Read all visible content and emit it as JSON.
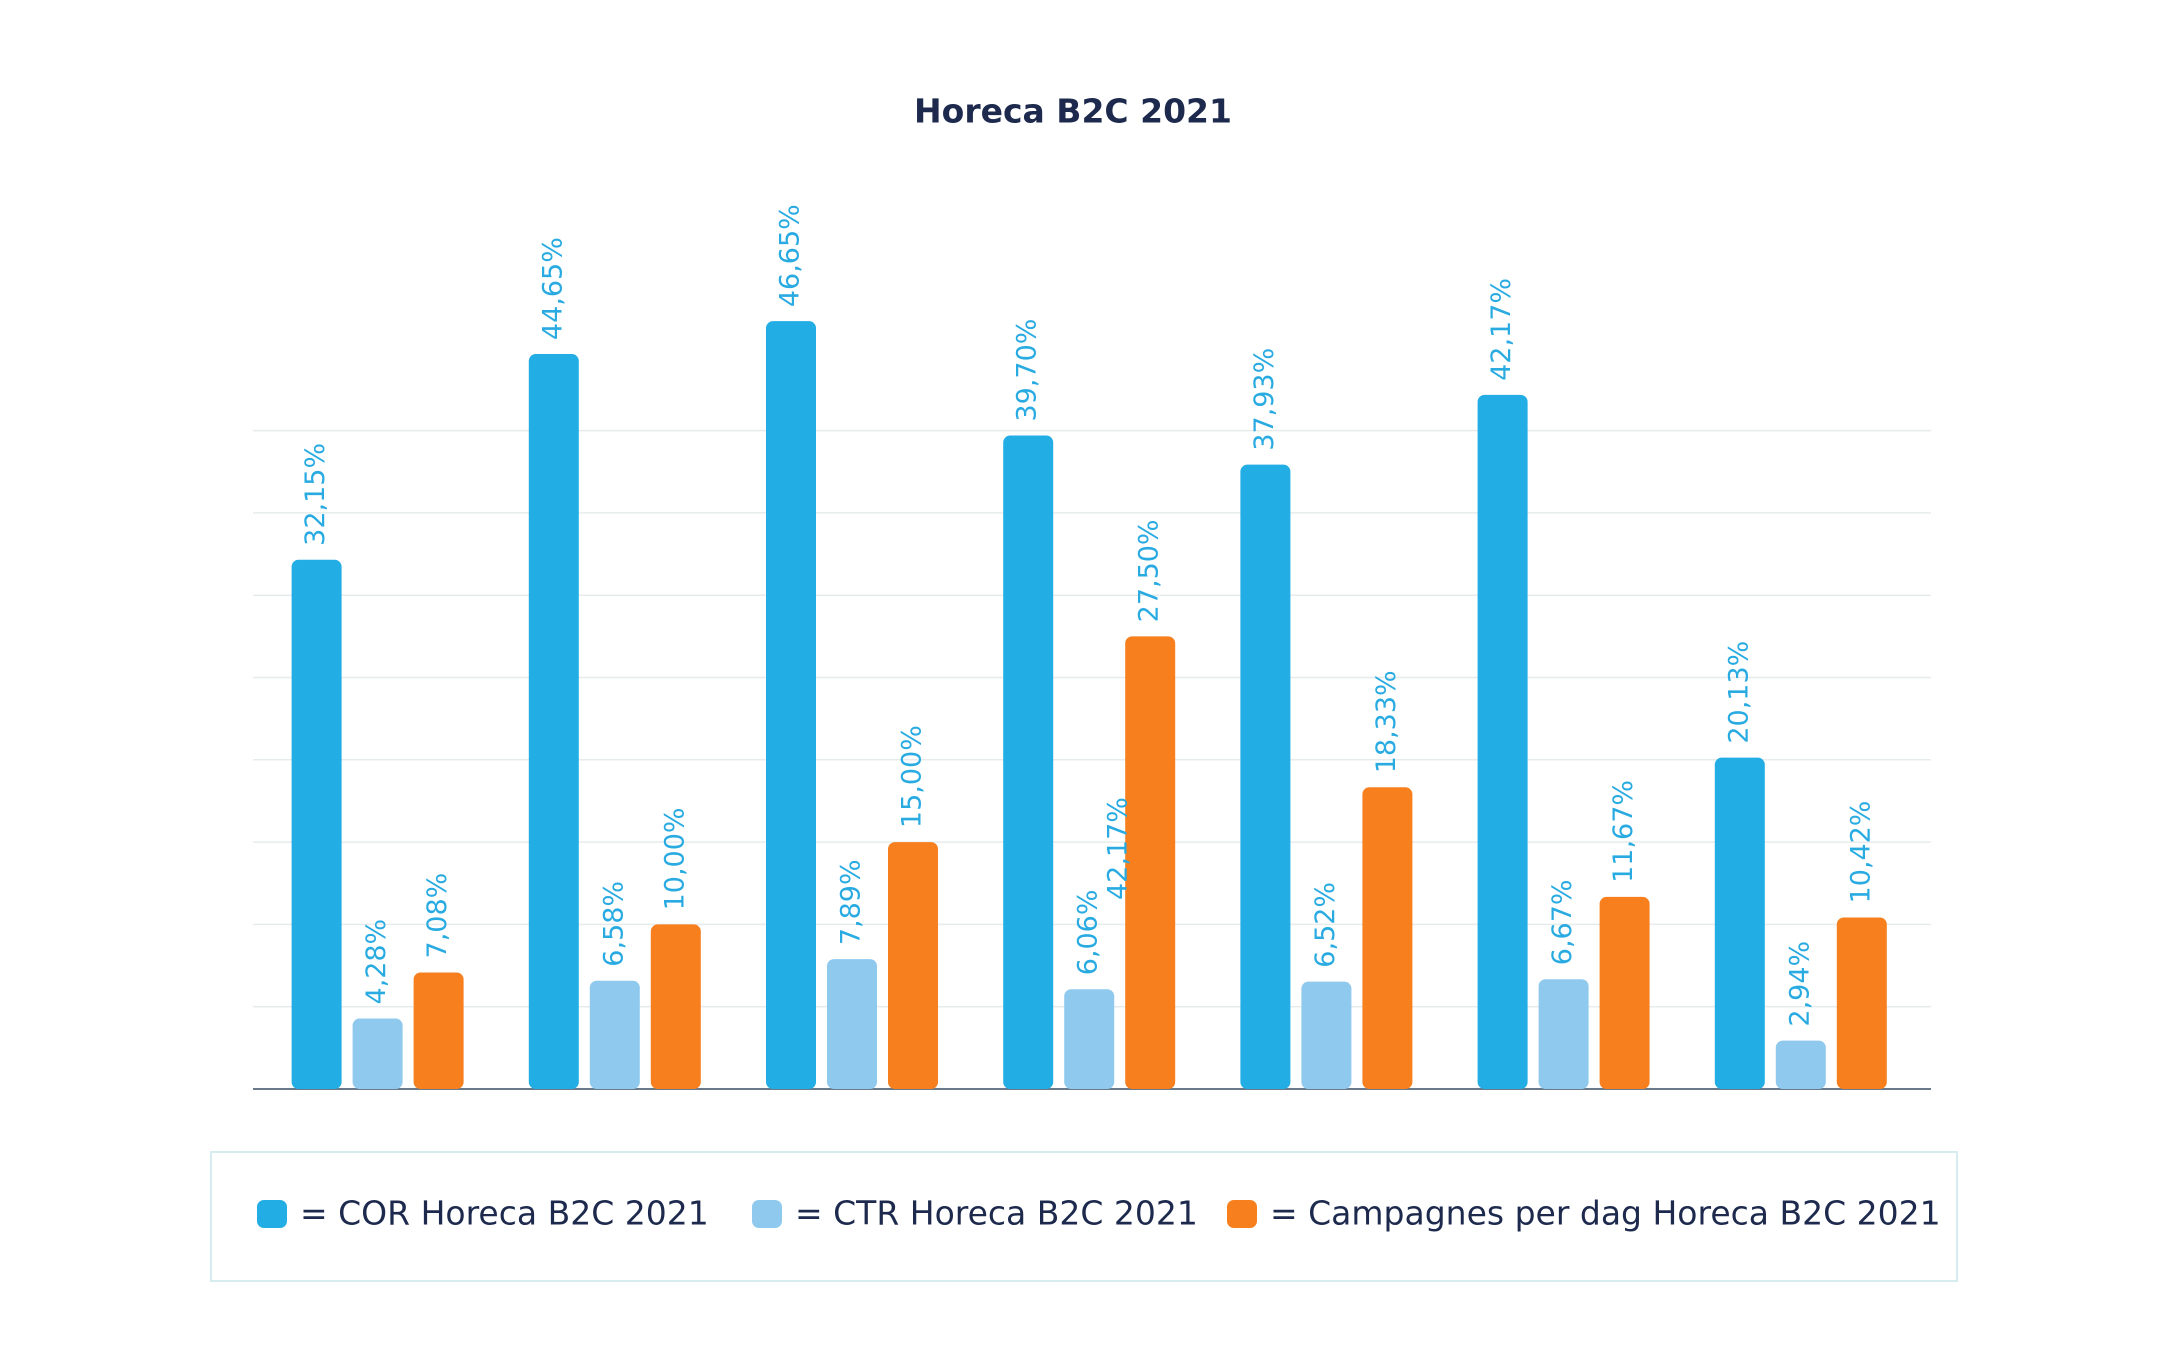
{
  "chart_data": {
    "type": "bar",
    "title": "Horeca B2C 2021",
    "categories": [
      null,
      null,
      null,
      null,
      null,
      null,
      null
    ],
    "series": [
      {
        "name": "= COR Horeca B2C 2021",
        "color": "#22ade4",
        "values": [
          32.15,
          44.65,
          46.65,
          39.7,
          37.93,
          42.17,
          20.13
        ],
        "value_labels": [
          "32,15%",
          "44,65%",
          "46,65%",
          "39,70%",
          "37,93%",
          "42,17%",
          "20,13%"
        ]
      },
      {
        "name": "= CTR Horeca B2C 2021",
        "color": "#8fc9ee",
        "values": [
          4.28,
          6.58,
          7.89,
          6.06,
          6.52,
          6.67,
          2.94
        ],
        "value_labels": [
          "4,28%",
          "6,58%",
          "7,89%",
          "6,06%",
          "6,52%",
          "6,67%",
          "2,94%"
        ]
      },
      {
        "name": "= Campagnes per dag Horeca B2C 2021",
        "color": "#f77f1e",
        "values": [
          7.08,
          10.0,
          15.0,
          27.5,
          18.33,
          11.67,
          10.42
        ],
        "value_labels": [
          "7,08%",
          "10,00%",
          "15,00%",
          "27,50%",
          "18,33%",
          "11,67%",
          "10,42%"
        ]
      }
    ],
    "annotations": [
      "42,17%"
    ],
    "ylim": [
      0,
      50
    ],
    "yticks": [
      0,
      5,
      10,
      15,
      20,
      25,
      30,
      35,
      40
    ],
    "tick_labels": false,
    "grid": true,
    "value_label_color": "#29abe2"
  }
}
